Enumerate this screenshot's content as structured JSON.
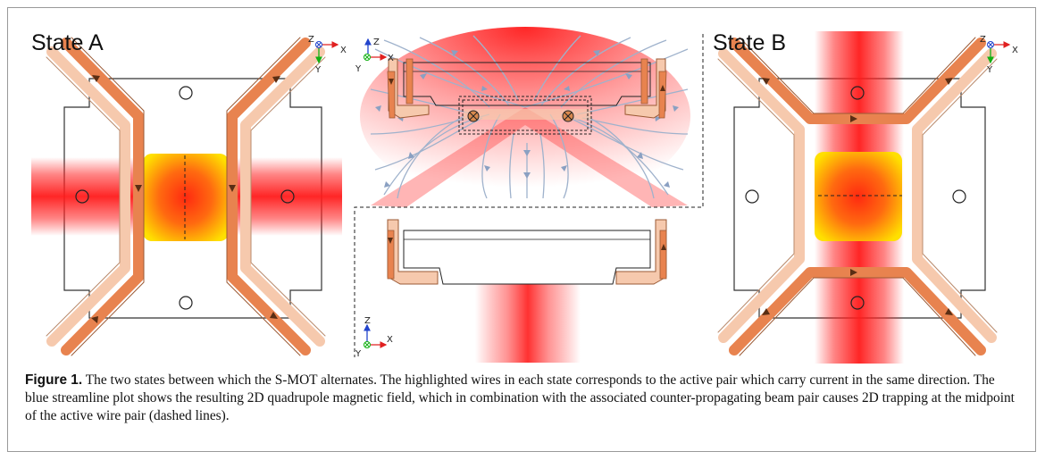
{
  "figure": {
    "state_a_label": "State A",
    "state_b_label": "State B",
    "caption_label": "Figure 1.",
    "caption_text": "The two states between which the S-MOT alternates. The highlighted wires in each state corresponds to the active pair which carry current in the same direction. The blue streamline plot shows the resulting 2D quadrupole magnetic field, which in combination with the associated counter-propagating beam pair causes 2D trapping at the midpoint of the active wire pair (dashed lines)."
  },
  "axes": {
    "z": "Z",
    "x": "X",
    "y": "Y"
  },
  "colors": {
    "wire_active": "#e8834f",
    "wire_inactive": "#f6c9ad",
    "wire_outline": "#9b5a35",
    "field_lines": "#9fb2cc",
    "beam": "#ff1a1a",
    "trap_center": "#ffdd00",
    "axis_x": "#e02020",
    "axis_y": "#12b012",
    "axis_z": "#2244cc"
  }
}
